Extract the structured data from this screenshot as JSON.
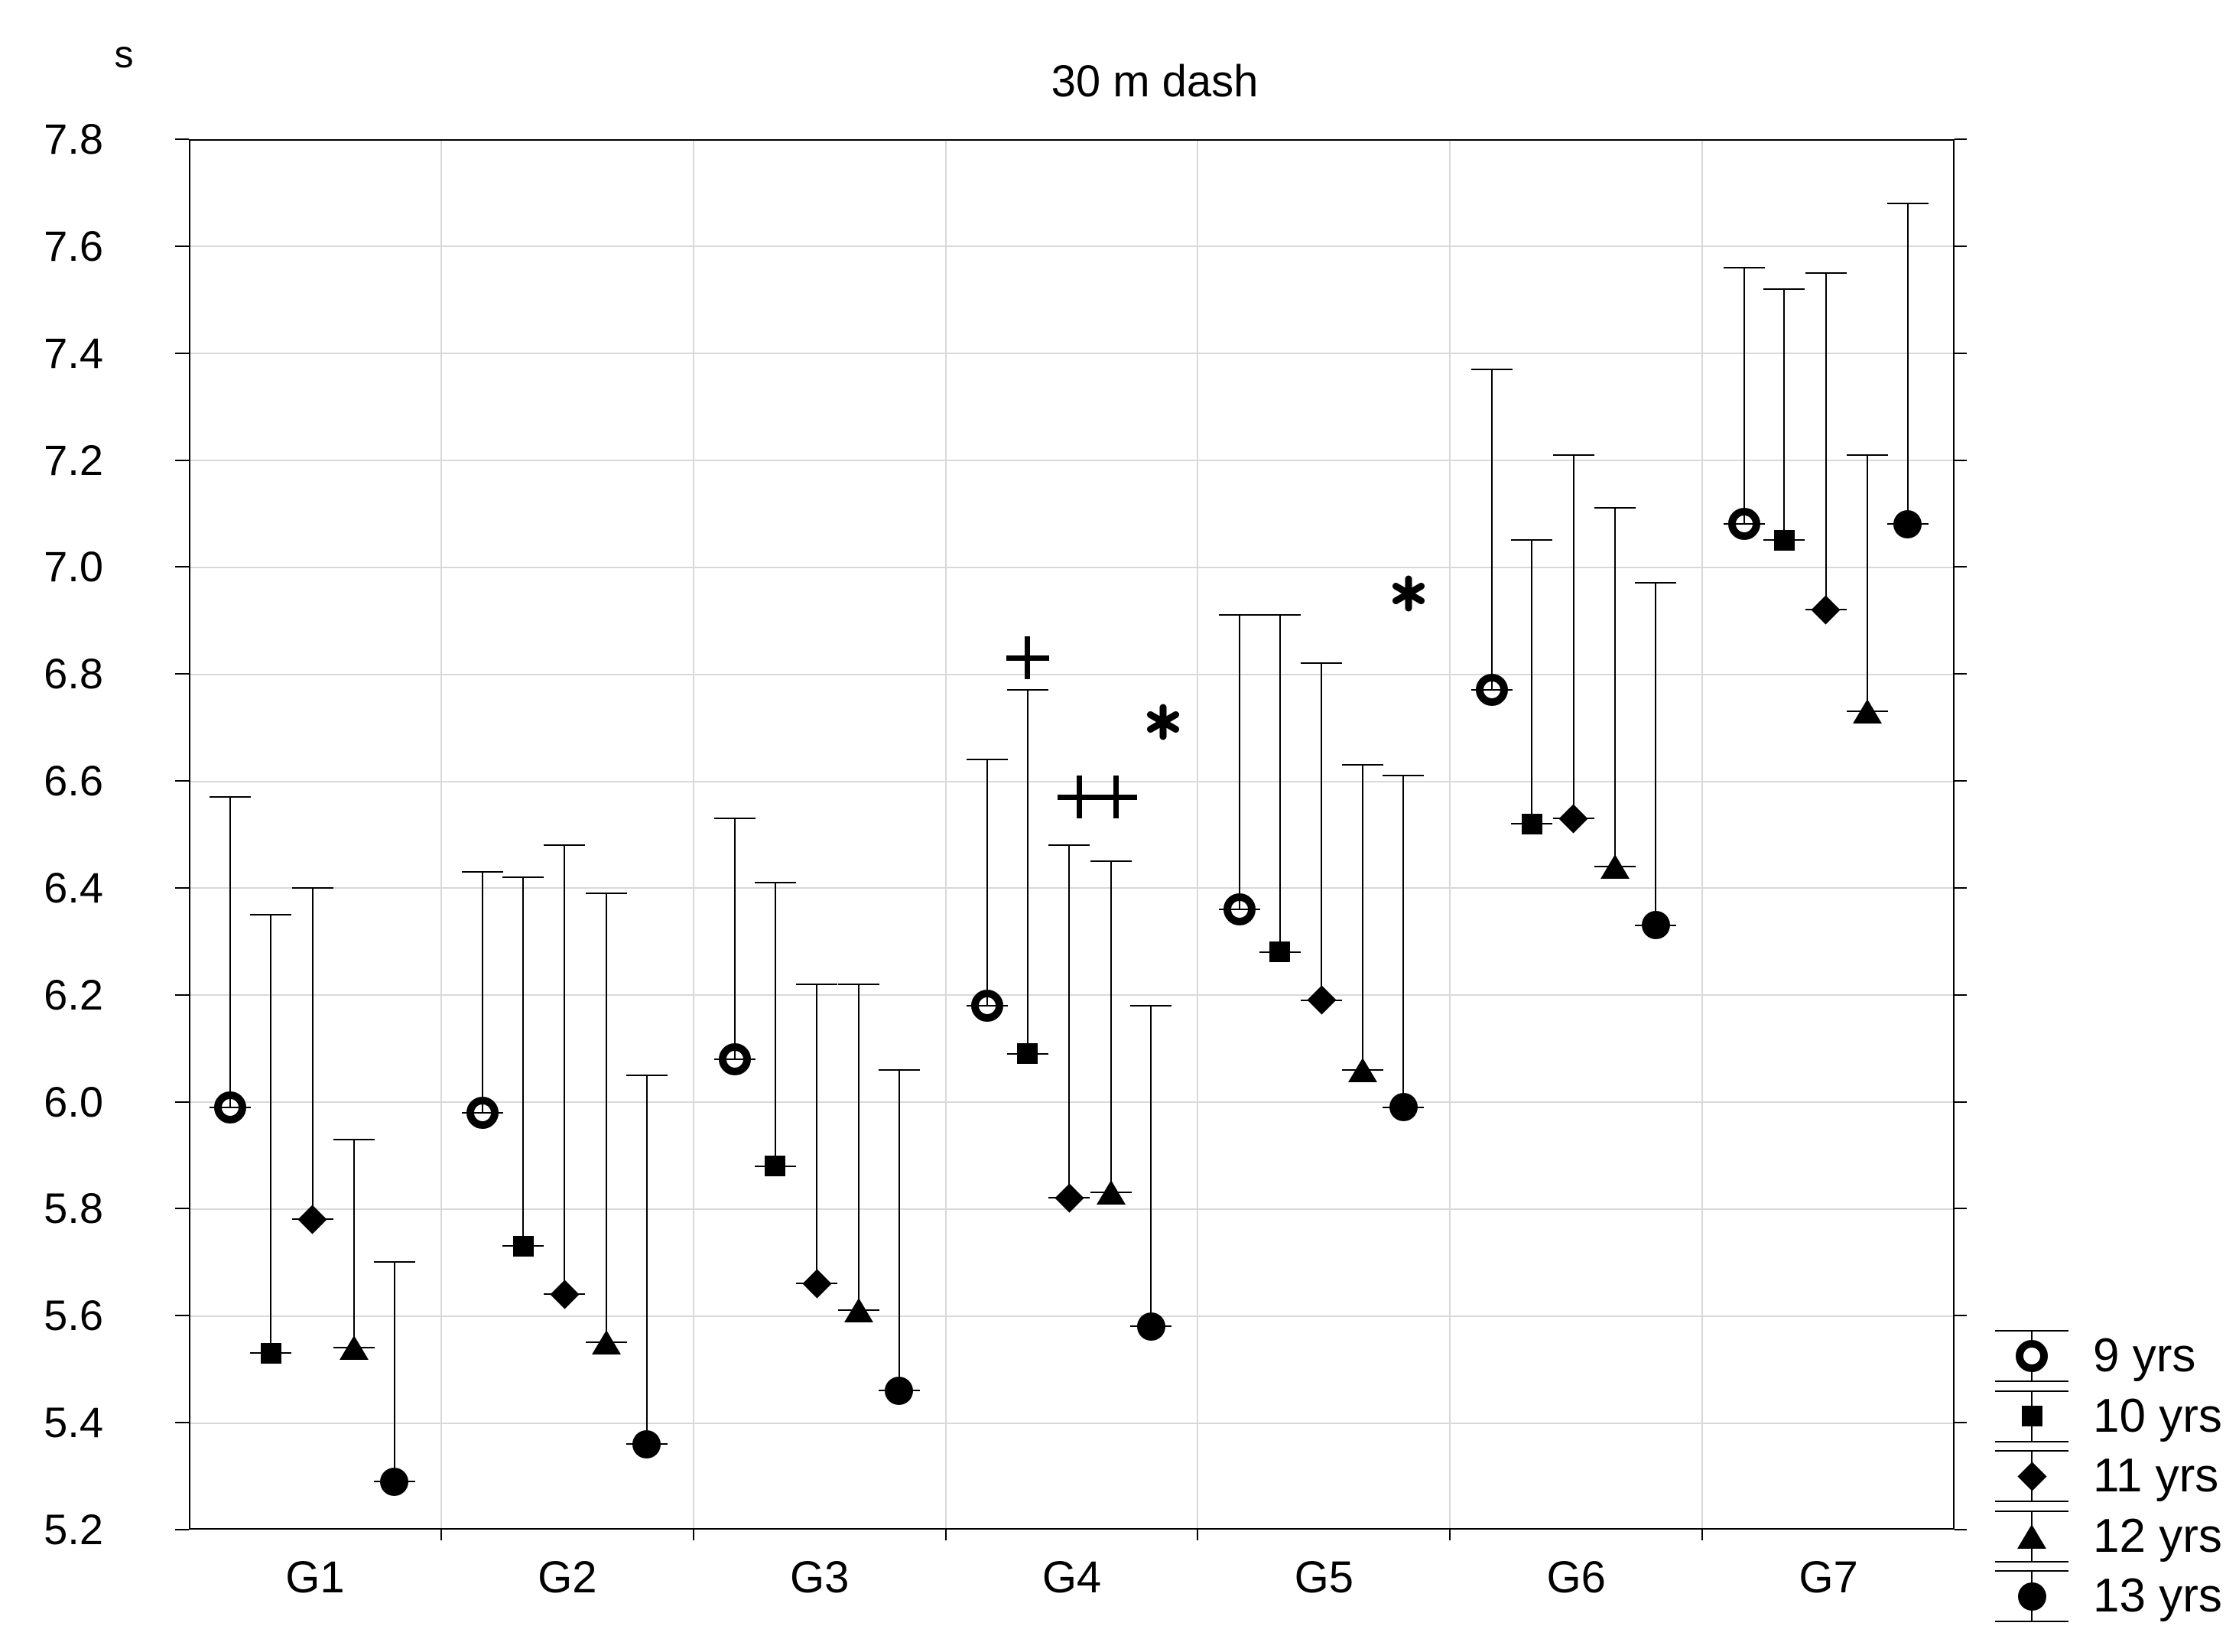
{
  "figure": {
    "title": "30 m dash",
    "y_axis_unit": "s",
    "foreground_color": "#000000",
    "background_color": "#ffffff",
    "gridline_color": "#d9d9d9"
  },
  "chart_data": {
    "type": "scatter",
    "subtype": "group-means-with-upper-error-bars",
    "title": "30 m dash",
    "xlabel": "",
    "ylabel": "s",
    "ylim": [
      5.2,
      7.8
    ],
    "ytick_interval": 0.2,
    "yticks": [
      "5.2",
      "5.4",
      "5.6",
      "5.8",
      "6.0",
      "6.2",
      "6.4",
      "6.6",
      "6.8",
      "7.0",
      "7.2",
      "7.4",
      "7.6",
      "7.8"
    ],
    "categories": [
      "G1",
      "G2",
      "G3",
      "G4",
      "G5",
      "G6",
      "G7"
    ],
    "grid": "on",
    "legend_position": "outside-bottom-right",
    "series": [
      {
        "name": "9 yrs",
        "marker": "open-circle",
        "values": [
          5.99,
          5.98,
          6.08,
          6.18,
          6.36,
          6.77,
          7.08
        ],
        "upper": [
          6.57,
          6.43,
          6.53,
          6.64,
          6.91,
          7.37,
          7.56
        ]
      },
      {
        "name": "10 yrs",
        "marker": "square",
        "values": [
          5.53,
          5.73,
          5.88,
          6.09,
          6.28,
          6.52,
          7.05
        ],
        "upper": [
          6.35,
          6.42,
          6.41,
          6.77,
          6.91,
          7.05,
          7.52
        ]
      },
      {
        "name": "11 yrs",
        "marker": "diamond",
        "values": [
          5.78,
          5.64,
          5.66,
          5.82,
          6.19,
          6.53,
          6.92
        ],
        "upper": [
          6.4,
          6.48,
          6.22,
          6.48,
          6.82,
          7.21,
          7.55
        ]
      },
      {
        "name": "12 yrs",
        "marker": "triangle",
        "values": [
          5.54,
          5.55,
          5.61,
          5.83,
          6.06,
          6.44,
          6.73
        ],
        "upper": [
          5.93,
          6.39,
          6.22,
          6.45,
          6.63,
          7.11,
          7.21
        ]
      },
      {
        "name": "13 yrs",
        "marker": "filled-circle",
        "values": [
          5.29,
          5.36,
          5.46,
          5.58,
          5.99,
          6.33,
          7.08
        ],
        "upper": [
          5.7,
          6.05,
          6.06,
          6.18,
          6.61,
          6.97,
          7.68
        ]
      }
    ],
    "annotations": [
      {
        "text": "+",
        "group": "G4",
        "near_series": "10 yrs",
        "value": 6.83
      },
      {
        "text": "++",
        "group": "G4",
        "near_series": "11 yrs / 12 yrs",
        "value": 6.57
      },
      {
        "text": "*",
        "group": "G4",
        "near_series": "13 yrs",
        "value": 6.71
      },
      {
        "text": "*",
        "group": "G5",
        "near_series": "13 yrs",
        "value": 6.95
      }
    ]
  },
  "legend": {
    "entries": [
      {
        "label": "9 yrs",
        "marker": "open-circle"
      },
      {
        "label": "10 yrs",
        "marker": "square"
      },
      {
        "label": "11 yrs",
        "marker": "diamond"
      },
      {
        "label": "12 yrs",
        "marker": "triangle"
      },
      {
        "label": "13 yrs",
        "marker": "filled-circle"
      }
    ]
  }
}
